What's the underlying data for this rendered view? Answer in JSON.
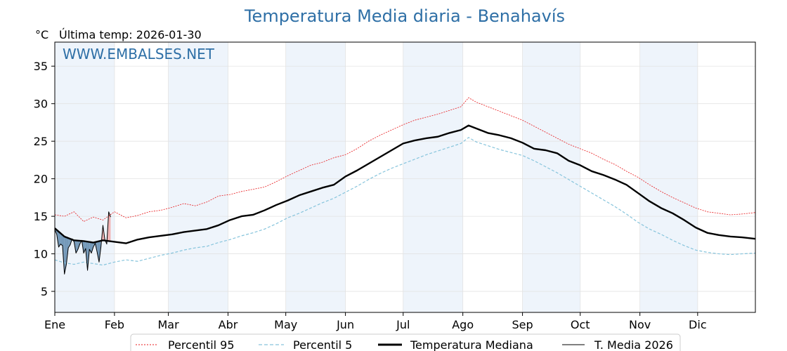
{
  "chart_data": {
    "type": "line",
    "title": "Temperatura Media diaria - Benahavís",
    "unit_label": "°C",
    "last_temp_label": "Última temp: 2026-01-30",
    "watermark": "WWW.EMBALSES.NET",
    "xlim": [
      1,
      365
    ],
    "ylim": [
      2.2,
      38.2
    ],
    "yticks": [
      5,
      10,
      15,
      20,
      25,
      30,
      35
    ],
    "month_labels": [
      "Ene",
      "Feb",
      "Mar",
      "Abr",
      "May",
      "Jun",
      "Jul",
      "Ago",
      "Sep",
      "Oct",
      "Nov",
      "Dic"
    ],
    "month_start_days": [
      1,
      32,
      60,
      91,
      121,
      152,
      182,
      213,
      244,
      274,
      305,
      335
    ],
    "shaded_months": [
      "Ene",
      "Mar",
      "May",
      "Jul",
      "Sep",
      "Nov"
    ],
    "grid": true,
    "legend_position": "bottom-center",
    "colors": {
      "title": "#2e6fa6",
      "p95": "#e8191c",
      "p5": "#86c4dc",
      "median": "#000000",
      "current": "#000000",
      "shade": "#eef4fb",
      "above_fill": "#f2a7a7",
      "below_fill": "#5e88ad"
    },
    "series": [
      {
        "name": "Percentil 95",
        "style": "dotted-thin",
        "x": [
          1,
          6,
          11,
          16,
          21,
          26,
          32,
          38,
          44,
          50,
          56,
          62,
          68,
          74,
          80,
          86,
          92,
          98,
          104,
          110,
          116,
          122,
          128,
          134,
          140,
          146,
          152,
          158,
          164,
          170,
          176,
          182,
          188,
          194,
          200,
          206,
          212,
          216,
          220,
          226,
          232,
          238,
          244,
          250,
          256,
          262,
          268,
          274,
          280,
          286,
          292,
          298,
          304,
          310,
          316,
          322,
          328,
          334,
          340,
          346,
          352,
          358,
          365
        ],
        "values": [
          15.2,
          15.0,
          15.6,
          14.3,
          14.9,
          14.5,
          15.6,
          14.8,
          15.1,
          15.6,
          15.8,
          16.2,
          16.7,
          16.4,
          16.9,
          17.7,
          17.9,
          18.3,
          18.6,
          18.9,
          19.6,
          20.4,
          21.1,
          21.8,
          22.2,
          22.8,
          23.2,
          24.0,
          25.0,
          25.8,
          26.5,
          27.2,
          27.8,
          28.2,
          28.6,
          29.1,
          29.6,
          30.8,
          30.2,
          29.6,
          29.0,
          28.4,
          27.8,
          27.0,
          26.2,
          25.4,
          24.6,
          24.0,
          23.4,
          22.6,
          21.9,
          21.0,
          20.2,
          19.2,
          18.3,
          17.5,
          16.8,
          16.1,
          15.6,
          15.4,
          15.2,
          15.3,
          15.5
        ]
      },
      {
        "name": "Percentil 5",
        "style": "dashed",
        "x": [
          1,
          6,
          11,
          16,
          21,
          26,
          32,
          38,
          44,
          50,
          56,
          62,
          68,
          74,
          80,
          86,
          92,
          98,
          104,
          110,
          116,
          122,
          128,
          134,
          140,
          146,
          152,
          158,
          164,
          170,
          176,
          182,
          188,
          194,
          200,
          206,
          212,
          216,
          220,
          226,
          232,
          238,
          244,
          250,
          256,
          262,
          268,
          274,
          280,
          286,
          292,
          298,
          304,
          310,
          316,
          322,
          328,
          334,
          340,
          346,
          352,
          358,
          365
        ],
        "values": [
          9.2,
          8.8,
          8.6,
          8.9,
          8.7,
          8.5,
          8.9,
          9.2,
          9.0,
          9.4,
          9.8,
          10.1,
          10.5,
          10.8,
          11.0,
          11.5,
          11.9,
          12.4,
          12.8,
          13.3,
          14.0,
          14.8,
          15.4,
          16.1,
          16.8,
          17.4,
          18.2,
          19.0,
          19.9,
          20.7,
          21.4,
          22.0,
          22.6,
          23.2,
          23.7,
          24.2,
          24.7,
          25.5,
          24.9,
          24.4,
          23.9,
          23.5,
          23.1,
          22.4,
          21.6,
          20.8,
          19.9,
          19.0,
          18.1,
          17.2,
          16.3,
          15.3,
          14.2,
          13.3,
          12.6,
          11.8,
          11.1,
          10.5,
          10.2,
          10.0,
          9.9,
          10.0,
          10.1
        ]
      },
      {
        "name": "Temperatura Mediana",
        "style": "solid-thick",
        "x": [
          1,
          6,
          11,
          16,
          21,
          26,
          32,
          38,
          44,
          50,
          56,
          62,
          68,
          74,
          80,
          86,
          92,
          98,
          104,
          110,
          116,
          122,
          128,
          134,
          140,
          146,
          152,
          158,
          164,
          170,
          176,
          182,
          188,
          194,
          200,
          206,
          212,
          216,
          220,
          226,
          232,
          238,
          244,
          250,
          256,
          262,
          268,
          274,
          280,
          286,
          292,
          298,
          304,
          310,
          316,
          322,
          328,
          334,
          340,
          346,
          352,
          358,
          365
        ],
        "values": [
          13.4,
          12.3,
          11.8,
          11.7,
          11.5,
          11.8,
          11.6,
          11.4,
          11.9,
          12.2,
          12.4,
          12.6,
          12.9,
          13.1,
          13.3,
          13.8,
          14.5,
          15.0,
          15.2,
          15.8,
          16.5,
          17.1,
          17.8,
          18.3,
          18.8,
          19.2,
          20.3,
          21.1,
          22.0,
          22.9,
          23.8,
          24.7,
          25.1,
          25.4,
          25.6,
          26.1,
          26.5,
          27.1,
          26.7,
          26.1,
          25.8,
          25.4,
          24.8,
          24.0,
          23.8,
          23.4,
          22.4,
          21.8,
          21.0,
          20.5,
          19.9,
          19.2,
          18.1,
          17.0,
          16.1,
          15.4,
          14.5,
          13.5,
          12.8,
          12.5,
          12.3,
          12.2,
          12.0
        ]
      },
      {
        "name": "T. Media 2026",
        "style": "solid-thin",
        "x": [
          1,
          2,
          3,
          4,
          5,
          6,
          7,
          8,
          9,
          10,
          11,
          12,
          13,
          14,
          15,
          16,
          17,
          18,
          19,
          20,
          21,
          22,
          23,
          24,
          25,
          26,
          27,
          28,
          29,
          30
        ],
        "values": [
          13.2,
          12.6,
          10.9,
          11.3,
          11.1,
          7.3,
          8.6,
          10.8,
          11.2,
          12.0,
          11.6,
          10.1,
          10.6,
          11.3,
          11.8,
          10.1,
          10.7,
          7.8,
          10.6,
          10.1,
          10.9,
          11.4,
          10.2,
          8.9,
          11.0,
          13.8,
          11.9,
          11.3,
          15.6,
          14.9
        ]
      }
    ]
  },
  "legend": {
    "items": [
      "Percentil 95",
      "Percentil 5",
      "Temperatura Mediana",
      "T. Media 2026"
    ]
  }
}
